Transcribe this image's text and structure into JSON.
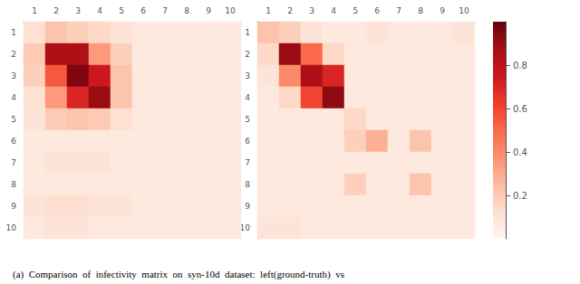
{
  "chart_data": {
    "type": "heatmap",
    "categories": [
      "1",
      "2",
      "3",
      "4",
      "5",
      "6",
      "7",
      "8",
      "9",
      "10"
    ],
    "series": [
      {
        "values": [
          [
            0.12,
            0.22,
            0.18,
            0.15,
            0.1,
            0.07,
            0.07,
            0.07,
            0.07,
            0.07
          ],
          [
            0.2,
            0.85,
            0.85,
            0.35,
            0.18,
            0.07,
            0.07,
            0.07,
            0.07,
            0.07
          ],
          [
            0.18,
            0.55,
            0.95,
            0.75,
            0.22,
            0.07,
            0.07,
            0.07,
            0.07,
            0.07
          ],
          [
            0.12,
            0.35,
            0.7,
            0.9,
            0.22,
            0.07,
            0.07,
            0.07,
            0.07,
            0.07
          ],
          [
            0.1,
            0.2,
            0.22,
            0.2,
            0.12,
            0.07,
            0.07,
            0.07,
            0.07,
            0.07
          ],
          [
            0.07,
            0.07,
            0.07,
            0.07,
            0.07,
            0.07,
            0.07,
            0.07,
            0.07,
            0.07
          ],
          [
            0.07,
            0.1,
            0.1,
            0.1,
            0.07,
            0.07,
            0.07,
            0.07,
            0.07,
            0.07
          ],
          [
            0.07,
            0.07,
            0.07,
            0.07,
            0.07,
            0.07,
            0.07,
            0.07,
            0.07,
            0.07
          ],
          [
            0.1,
            0.13,
            0.13,
            0.1,
            0.1,
            0.07,
            0.07,
            0.07,
            0.07,
            0.07
          ],
          [
            0.07,
            0.1,
            0.1,
            0.07,
            0.07,
            0.07,
            0.07,
            0.07,
            0.07,
            0.07
          ]
        ]
      },
      {
        "values": [
          [
            0.22,
            0.18,
            0.1,
            0.07,
            0.07,
            0.1,
            0.07,
            0.07,
            0.07,
            0.1
          ],
          [
            0.15,
            0.9,
            0.5,
            0.15,
            0.07,
            0.07,
            0.07,
            0.07,
            0.07,
            0.07
          ],
          [
            0.1,
            0.4,
            0.85,
            0.7,
            0.07,
            0.07,
            0.07,
            0.07,
            0.07,
            0.07
          ],
          [
            0.07,
            0.15,
            0.6,
            0.92,
            0.07,
            0.07,
            0.07,
            0.07,
            0.07,
            0.07
          ],
          [
            0.07,
            0.07,
            0.07,
            0.07,
            0.15,
            0.07,
            0.07,
            0.07,
            0.07,
            0.07
          ],
          [
            0.07,
            0.07,
            0.07,
            0.07,
            0.18,
            0.28,
            0.07,
            0.22,
            0.07,
            0.07
          ],
          [
            0.07,
            0.07,
            0.07,
            0.07,
            0.07,
            0.07,
            0.07,
            0.07,
            0.07,
            0.07
          ],
          [
            0.07,
            0.07,
            0.07,
            0.07,
            0.18,
            0.07,
            0.07,
            0.22,
            0.07,
            0.07
          ],
          [
            0.07,
            0.07,
            0.07,
            0.07,
            0.07,
            0.07,
            0.07,
            0.07,
            0.07,
            0.07
          ],
          [
            0.1,
            0.1,
            0.07,
            0.07,
            0.07,
            0.07,
            0.07,
            0.07,
            0.07,
            0.07
          ]
        ]
      }
    ],
    "color": [
      "#fff5f0",
      "#fee0d2",
      "#fcbba1",
      "#fc9272",
      "#fb6a4a",
      "#ef3b2c",
      "#cb181d",
      "#a50f15",
      "#67000d"
    ],
    "color_range": [
      0.0,
      1.0
    ],
    "color_ticks": [
      0.2,
      0.4,
      0.6,
      0.8
    ],
    "annotations": [
      "(a)  Comparison  of  infectivity  matrix  on  syn-10d  dataset:  left(ground-truth)  vs"
    ]
  }
}
